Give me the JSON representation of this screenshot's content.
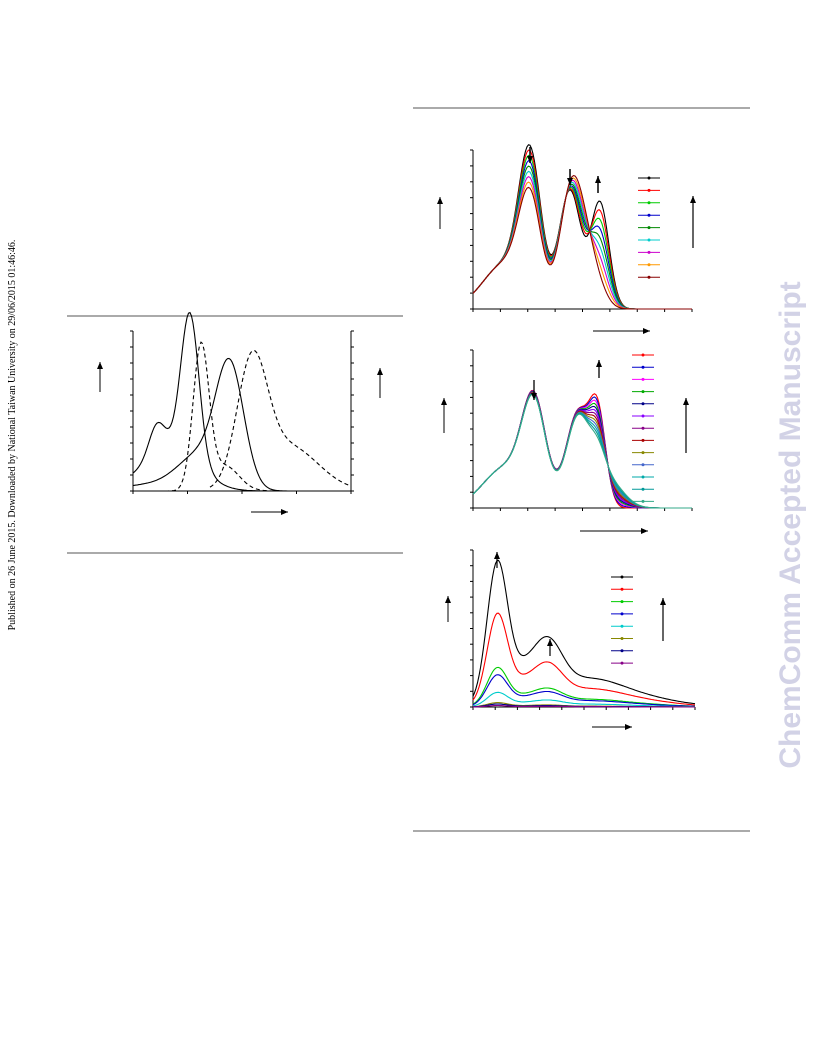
{
  "sidebar_note": "Published on 26 June 2015. Downloaded by National Taiwan University on 29/06/2015 01:46:46.",
  "watermark": "ChemComm Accepted Manuscript"
}
